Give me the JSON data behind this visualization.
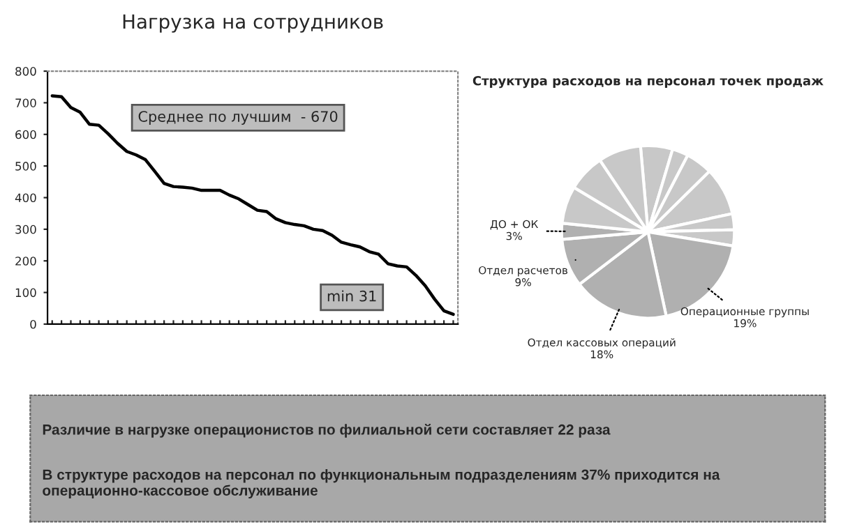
{
  "chart_data": [
    {
      "type": "line",
      "title": "Нагрузка на сотрудников",
      "categories": [
        null,
        null,
        null,
        null,
        null,
        null,
        null,
        null,
        null,
        null,
        null,
        null,
        null,
        null,
        null,
        null,
        null,
        null,
        null,
        null,
        null,
        null,
        null,
        null,
        null,
        null,
        null,
        null,
        null,
        null,
        null,
        null,
        null,
        null,
        null,
        null,
        null,
        null,
        null,
        null,
        null,
        null,
        null,
        null
      ],
      "series": [
        {
          "color": "#000000",
          "values": [
            722,
            719,
            685,
            670,
            632,
            629,
            602,
            572,
            546,
            535,
            520,
            483,
            445,
            435,
            433,
            430,
            423,
            423,
            423,
            408,
            396,
            378,
            360,
            356,
            333,
            321,
            315,
            311,
            300,
            296,
            281,
            259,
            251,
            244,
            229,
            221,
            191,
            184,
            181,
            154,
            121,
            79,
            42,
            31
          ]
        }
      ],
      "ylim": [
        0,
        800
      ],
      "yticks": [
        0,
        100,
        200,
        300,
        400,
        500,
        600,
        700,
        800
      ],
      "tick_labels": "y",
      "grid": false,
      "legend": false,
      "marker": "none",
      "line_style": "solid",
      "annotations": [
        "Среднее по лучшим  - 670",
        "min 31"
      ]
    },
    {
      "type": "pie",
      "title": "Структура расходов на персонал точек продаж",
      "categories": [
        null,
        null,
        null,
        null,
        null,
        null,
        "Операционные группы",
        "Отдел кассовых операций",
        "Отдел расчетов",
        "ДО + ОК",
        null,
        null,
        null
      ],
      "values": [
        6,
        3,
        5,
        9,
        3,
        3,
        19,
        18,
        9,
        3,
        7,
        7,
        8
      ],
      "value_labels": [
        null,
        null,
        null,
        null,
        null,
        null,
        "19%",
        "18%",
        "9%",
        "3%",
        null,
        null,
        null
      ],
      "colors": [
        "#c8c8c8",
        "#c8c8c8",
        "#c8c8c8",
        "#c8c8c8",
        "#c8c8c8",
        "#c8c8c8",
        "#b0b0b0",
        "#b0b0b0",
        "#b0b0b0",
        "#b0b0b0",
        "#c8c8c8",
        "#c8c8c8",
        "#c8c8c8"
      ],
      "legend": false
    },
    {
      "type": "other",
      "annotations": [
        "Различие в нагрузке операционистов по филиальной сети составляет 22 раза",
        "В структуре расходов на персонал по функциональным подразделениям 37% приходится на операционно-кассовое обслуживание"
      ]
    }
  ]
}
